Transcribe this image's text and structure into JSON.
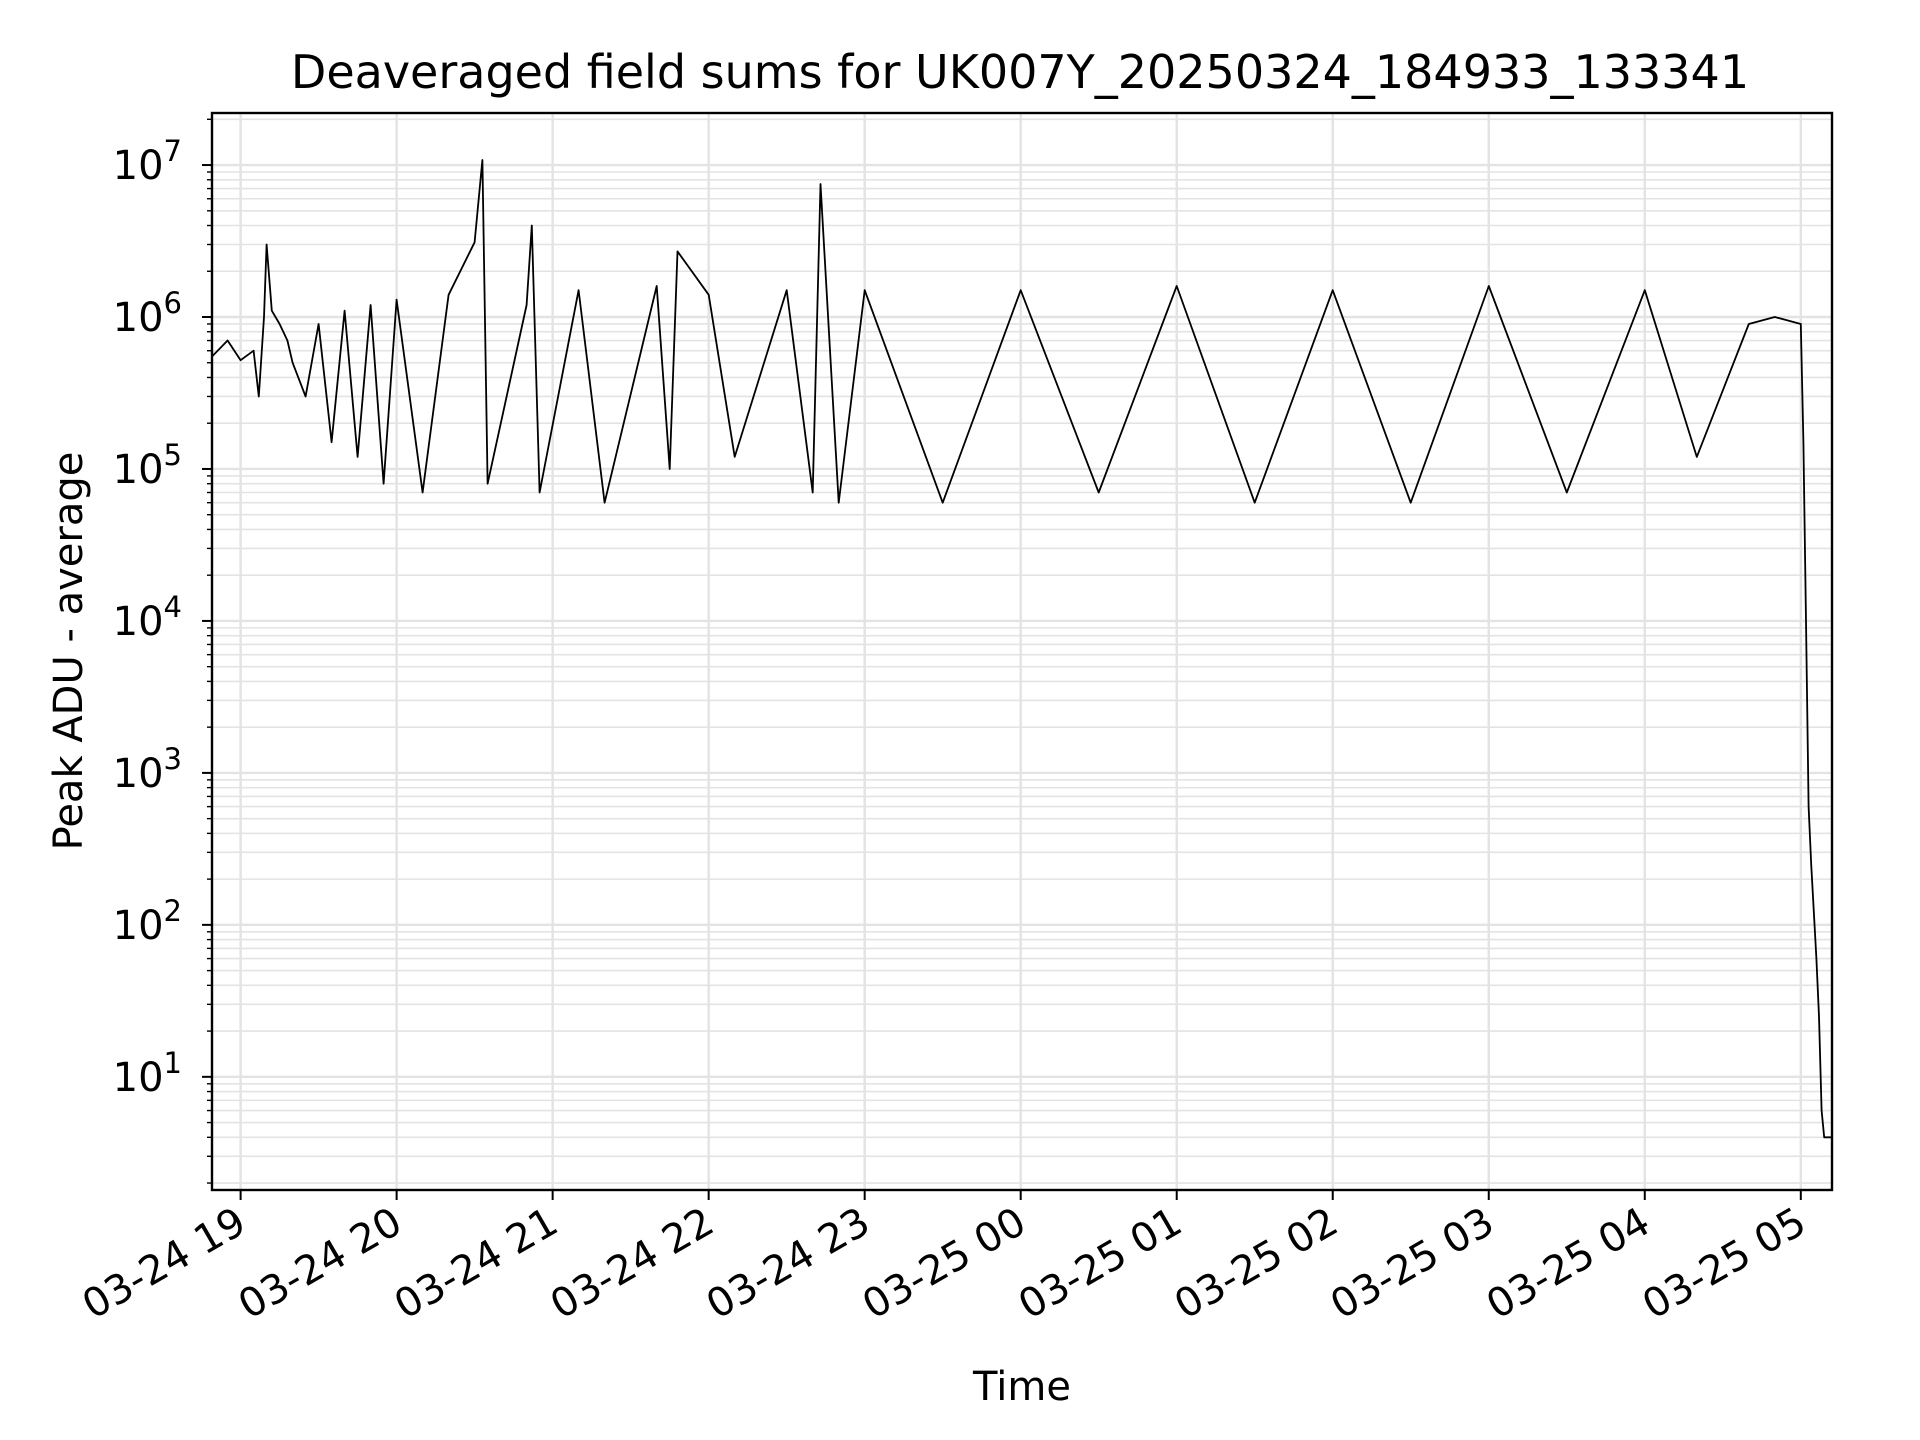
{
  "chart_data": {
    "type": "line",
    "title": "Deaveraged field sums for UK007Y_20250324_184933_133341",
    "xlabel": "Time",
    "ylabel": "Peak ADU - average",
    "x_ticks": [
      "03-24 19",
      "03-24 20",
      "03-24 21",
      "03-24 22",
      "03-24 23",
      "03-25 00",
      "03-25 01",
      "03-25 02",
      "03-25 03",
      "03-25 04",
      "03-25 05"
    ],
    "y_scale": "log",
    "y_ticks": [
      {
        "base": "10",
        "exp": "1",
        "value": 10
      },
      {
        "base": "10",
        "exp": "2",
        "value": 100
      },
      {
        "base": "10",
        "exp": "3",
        "value": 1000
      },
      {
        "base": "10",
        "exp": "4",
        "value": 10000
      },
      {
        "base": "10",
        "exp": "5",
        "value": 100000
      },
      {
        "base": "10",
        "exp": "6",
        "value": 1000000
      },
      {
        "base": "10",
        "exp": "7",
        "value": 10000000
      }
    ],
    "xlim": [
      "2025-03-24 18:49",
      "2025-03-25 05:12"
    ],
    "ylim": [
      1.8,
      22000000
    ],
    "grid": true,
    "line_color": "#000000",
    "series": [
      {
        "points": [
          [
            "2025-03-24 18:49",
            550000
          ],
          [
            "2025-03-24 18:55",
            700000
          ],
          [
            "2025-03-24 19:00",
            520000
          ],
          [
            "2025-03-24 19:05",
            600000
          ],
          [
            "2025-03-24 19:07",
            300000
          ],
          [
            "2025-03-24 19:09",
            1000000
          ],
          [
            "2025-03-24 19:10",
            3000000
          ],
          [
            "2025-03-24 19:12",
            1100000
          ],
          [
            "2025-03-24 19:15",
            900000
          ],
          [
            "2025-03-24 19:18",
            700000
          ],
          [
            "2025-03-24 19:20",
            500000
          ],
          [
            "2025-03-24 19:25",
            300000
          ],
          [
            "2025-03-24 19:30",
            900000
          ],
          [
            "2025-03-24 19:35",
            150000
          ],
          [
            "2025-03-24 19:40",
            1100000
          ],
          [
            "2025-03-24 19:45",
            120000
          ],
          [
            "2025-03-24 19:50",
            1200000
          ],
          [
            "2025-03-24 19:55",
            80000
          ],
          [
            "2025-03-24 20:00",
            1300000
          ],
          [
            "2025-03-24 20:10",
            70000
          ],
          [
            "2025-03-24 20:20",
            1400000
          ],
          [
            "2025-03-24 20:30",
            3100000
          ],
          [
            "2025-03-24 20:33",
            10800000
          ],
          [
            "2025-03-24 20:35",
            80000
          ],
          [
            "2025-03-24 20:50",
            1200000
          ],
          [
            "2025-03-24 20:52",
            4000000
          ],
          [
            "2025-03-24 20:55",
            70000
          ],
          [
            "2025-03-24 21:10",
            1500000
          ],
          [
            "2025-03-24 21:20",
            60000
          ],
          [
            "2025-03-24 21:40",
            1600000
          ],
          [
            "2025-03-24 21:45",
            100000
          ],
          [
            "2025-03-24 21:48",
            2700000
          ],
          [
            "2025-03-24 22:00",
            1400000
          ],
          [
            "2025-03-24 22:10",
            120000
          ],
          [
            "2025-03-24 22:30",
            1500000
          ],
          [
            "2025-03-24 22:40",
            70000
          ],
          [
            "2025-03-24 22:43",
            7500000
          ],
          [
            "2025-03-24 22:50",
            60000
          ],
          [
            "2025-03-24 23:00",
            1500000
          ],
          [
            "2025-03-24 23:30",
            60000
          ],
          [
            "2025-03-25 00:00",
            1500000
          ],
          [
            "2025-03-25 00:30",
            70000
          ],
          [
            "2025-03-25 01:00",
            1600000
          ],
          [
            "2025-03-25 01:30",
            60000
          ],
          [
            "2025-03-25 02:00",
            1500000
          ],
          [
            "2025-03-25 02:30",
            60000
          ],
          [
            "2025-03-25 03:00",
            1600000
          ],
          [
            "2025-03-25 03:30",
            70000
          ],
          [
            "2025-03-25 04:00",
            1500000
          ],
          [
            "2025-03-25 04:20",
            120000
          ],
          [
            "2025-03-25 04:40",
            900000
          ],
          [
            "2025-03-25 04:50",
            1000000
          ],
          [
            "2025-03-25 05:00",
            900000
          ],
          [
            "2025-03-25 05:01",
            150000
          ],
          [
            "2025-03-25 05:02",
            10000
          ],
          [
            "2025-03-25 05:03",
            600
          ],
          [
            "2025-03-25 05:04",
            250
          ],
          [
            "2025-03-25 05:06",
            60
          ],
          [
            "2025-03-25 05:07",
            25
          ],
          [
            "2025-03-25 05:08",
            6
          ],
          [
            "2025-03-25 05:09",
            4
          ],
          [
            "2025-03-25 05:12",
            4
          ]
        ]
      }
    ]
  }
}
